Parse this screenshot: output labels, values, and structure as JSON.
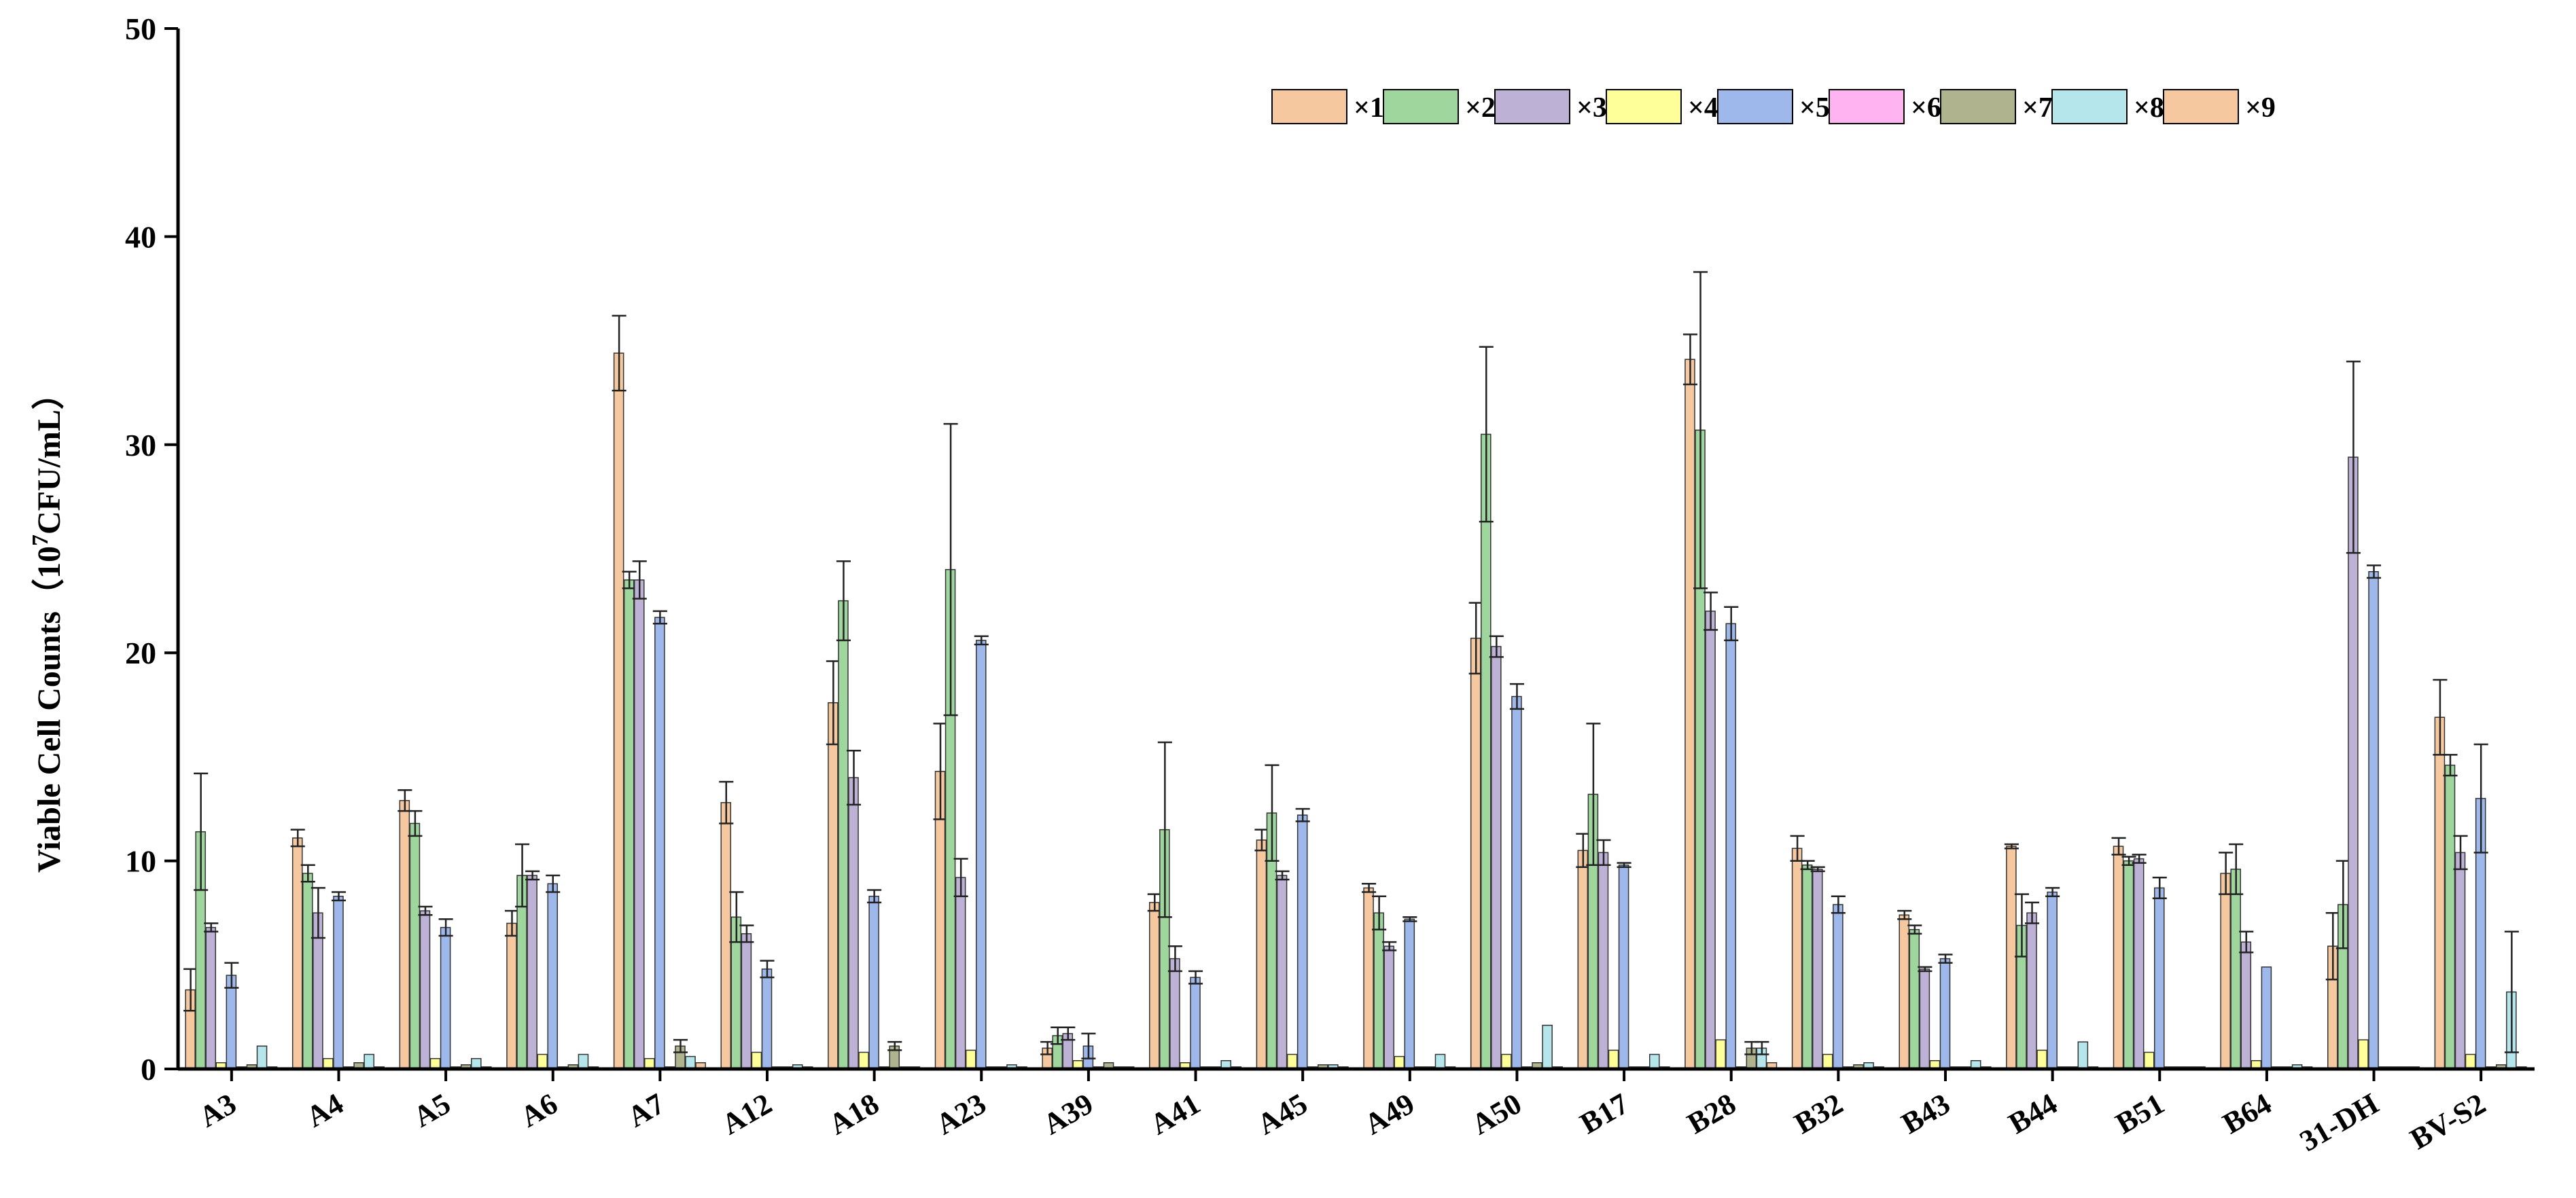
{
  "chart_data": {
    "type": "bar",
    "title": "",
    "xlabel": "",
    "ylabel": "Viable Cell Counts（10",
    "ylabel_superscript": "7",
    "ylabel_unit": "CFU/mL）",
    "ylim": [
      0,
      50
    ],
    "yticks": [
      "0",
      "10",
      "20",
      "30",
      "40",
      "50"
    ],
    "legend_position": "top-right",
    "categories": [
      "A3",
      "A4",
      "A5",
      "A6",
      "A7",
      "A12",
      "A18",
      "A23",
      "A39",
      "A41",
      "A45",
      "A49",
      "A50",
      "B17",
      "B28",
      "B32",
      "B43",
      "B44",
      "B51",
      "B64",
      "31-DH",
      "BV-S2"
    ],
    "series": [
      {
        "name": "×1",
        "color": "#F5C8A0",
        "values": [
          3.8,
          11.1,
          12.9,
          7.0,
          34.4,
          12.8,
          17.6,
          14.3,
          1.0,
          8.0,
          11.0,
          8.7,
          20.7,
          10.5,
          34.1,
          10.6,
          7.4,
          10.7,
          10.7,
          9.4,
          5.9,
          16.9
        ],
        "errors": [
          1.0,
          0.4,
          0.5,
          0.6,
          1.8,
          1.0,
          2.0,
          2.3,
          0.3,
          0.4,
          0.5,
          0.2,
          1.7,
          0.8,
          1.2,
          0.6,
          0.2,
          0.1,
          0.4,
          1.0,
          1.6,
          1.8
        ]
      },
      {
        "name": "×2",
        "color": "#9ED69E",
        "values": [
          11.4,
          9.4,
          11.8,
          9.3,
          23.5,
          7.3,
          22.5,
          24.0,
          1.6,
          11.5,
          12.3,
          7.5,
          30.5,
          13.2,
          30.7,
          9.8,
          6.7,
          6.9,
          10.0,
          9.6,
          7.9,
          14.6
        ],
        "errors": [
          2.8,
          0.4,
          0.6,
          1.5,
          0.4,
          1.2,
          1.9,
          7.0,
          0.4,
          4.2,
          2.3,
          0.8,
          4.2,
          3.4,
          7.6,
          0.2,
          0.2,
          1.5,
          0.2,
          1.2,
          2.1,
          0.5
        ]
      },
      {
        "name": "×3",
        "color": "#BDB2D6",
        "values": [
          6.8,
          7.5,
          7.6,
          9.3,
          23.5,
          6.5,
          14.0,
          9.2,
          1.7,
          5.3,
          9.3,
          5.9,
          20.3,
          10.4,
          22.0,
          9.6,
          4.8,
          7.5,
          10.1,
          6.1,
          29.4,
          10.4
        ],
        "errors": [
          0.2,
          1.2,
          0.2,
          0.2,
          0.9,
          0.4,
          1.3,
          0.9,
          0.3,
          0.6,
          0.2,
          0.2,
          0.5,
          0.6,
          0.9,
          0.1,
          0.1,
          0.5,
          0.2,
          0.5,
          4.6,
          0.8
        ]
      },
      {
        "name": "×4",
        "color": "#FFFF99",
        "values": [
          0.3,
          0.5,
          0.5,
          0.7,
          0.5,
          0.8,
          0.8,
          0.9,
          0.4,
          0.3,
          0.7,
          0.6,
          0.7,
          0.9,
          1.4,
          0.7,
          0.4,
          0.9,
          0.8,
          0.4,
          1.4,
          0.7
        ],
        "errors": [
          0,
          0,
          0,
          0,
          0,
          0,
          0,
          0,
          0,
          0,
          0,
          0,
          0,
          0,
          0,
          0,
          0,
          0,
          0,
          0,
          0,
          0
        ]
      },
      {
        "name": "×5",
        "color": "#9EB8EC",
        "values": [
          4.5,
          8.3,
          6.8,
          8.9,
          21.7,
          4.8,
          8.3,
          20.6,
          1.1,
          4.4,
          12.2,
          7.2,
          17.9,
          9.8,
          21.4,
          7.9,
          5.3,
          8.5,
          8.7,
          4.9,
          23.9,
          13.0
        ],
        "errors": [
          0.6,
          0.2,
          0.4,
          0.4,
          0.3,
          0.4,
          0.3,
          0.2,
          0.6,
          0.3,
          0.3,
          0.1,
          0.6,
          0.1,
          0.8,
          0.4,
          0.2,
          0.2,
          0.5,
          0,
          0.3,
          2.6
        ]
      },
      {
        "name": "×6",
        "color": "#FFB3F0",
        "values": [
          0.1,
          0.1,
          0.1,
          0.1,
          0.1,
          0.1,
          0.1,
          0.1,
          0.1,
          0.1,
          0.1,
          0.1,
          0.1,
          0.1,
          0.1,
          0.1,
          0.1,
          0.1,
          0.1,
          0.1,
          0.1,
          0.1
        ],
        "errors": [
          0,
          0,
          0,
          0,
          0,
          0,
          0,
          0,
          0,
          0,
          0,
          0,
          0,
          0,
          0,
          0,
          0,
          0,
          0,
          0,
          0,
          0
        ]
      },
      {
        "name": "×7",
        "color": "#B0B48E",
        "values": [
          0.2,
          0.3,
          0.2,
          0.2,
          1.1,
          0.1,
          1.1,
          0.1,
          0.3,
          0.1,
          0.2,
          0.1,
          0.3,
          0.1,
          1.0,
          0.2,
          0.1,
          0.1,
          0.1,
          0.1,
          0.1,
          0.2
        ],
        "errors": [
          0,
          0,
          0,
          0,
          0.3,
          0,
          0.2,
          0,
          0,
          0,
          0,
          0,
          0,
          0,
          0.3,
          0,
          0,
          0,
          0,
          0,
          0,
          0
        ]
      },
      {
        "name": "×8",
        "color": "#B4E6EC",
        "values": [
          1.1,
          0.7,
          0.5,
          0.7,
          0.6,
          0.2,
          0.1,
          0.2,
          0.1,
          0.4,
          0.2,
          0.7,
          2.1,
          0.7,
          1.0,
          0.3,
          0.4,
          1.3,
          0.1,
          0.2,
          0.1,
          3.7
        ],
        "errors": [
          0,
          0,
          0,
          0,
          0,
          0,
          0,
          0,
          0,
          0,
          0,
          0,
          0,
          0,
          0.3,
          0,
          0,
          0,
          0,
          0,
          0,
          2.9
        ]
      },
      {
        "name": "×9",
        "color": "#F5C8A0",
        "values": [
          0.1,
          0.1,
          0.1,
          0.1,
          0.3,
          0.1,
          0.1,
          0.1,
          0.1,
          0.1,
          0.1,
          0.1,
          0.1,
          0.1,
          0.3,
          0.1,
          0.1,
          0.1,
          0.1,
          0.1,
          0.1,
          0.1
        ],
        "errors": [
          0,
          0,
          0,
          0,
          0,
          0,
          0,
          0,
          0,
          0,
          0,
          0,
          0,
          0,
          0,
          0,
          0,
          0,
          0,
          0,
          0,
          0
        ]
      }
    ]
  }
}
